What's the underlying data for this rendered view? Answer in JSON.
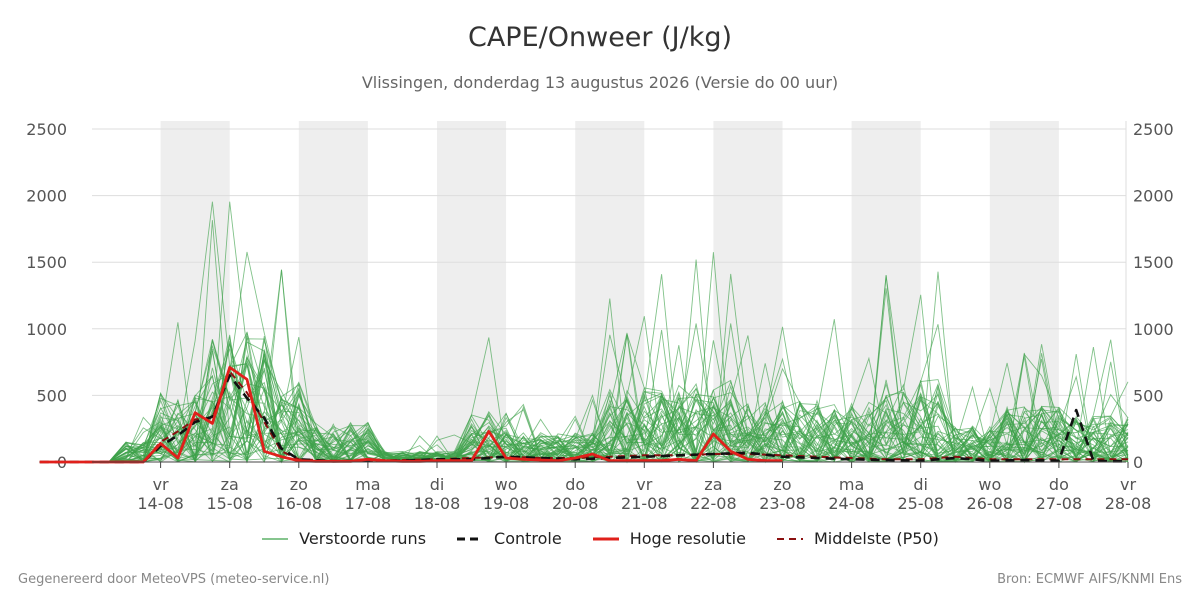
{
  "header": {
    "title": "CAPE/Onweer (J/kg)",
    "subtitle": "Vlissingen, donderdag 13 augustus 2026 (Versie do 00 uur)"
  },
  "footer": {
    "left": "Gegenereerd door MeteoVPS (meteo-service.nl)",
    "right": "Bron: ECMWF AIFS/KNMI Ens"
  },
  "colors": {
    "ensemble": "#3da24a",
    "control": "#111111",
    "hires": "#e0201b",
    "median": "#8b1010",
    "weekend_band": "#eeeeee",
    "grid": "#dddddd"
  },
  "chart_data": {
    "type": "line",
    "title": "CAPE/Onweer (J/kg)",
    "ylim": [
      0,
      2560
    ],
    "yticks": [
      0,
      500,
      1000,
      1500,
      2000,
      2500
    ],
    "ytick_labels": [
      "0",
      "500",
      "1000",
      "1500",
      "2000",
      "2500"
    ],
    "xlim_days": [
      0,
      15
    ],
    "x_unit": "days after 13-08 00:00",
    "x_ticks": [
      {
        "day": 1,
        "weekday": "vr",
        "date": "14-08"
      },
      {
        "day": 2,
        "weekday": "za",
        "date": "15-08"
      },
      {
        "day": 3,
        "weekday": "zo",
        "date": "16-08"
      },
      {
        "day": 4,
        "weekday": "ma",
        "date": "17-08"
      },
      {
        "day": 5,
        "weekday": "di",
        "date": "18-08"
      },
      {
        "day": 6,
        "weekday": "wo",
        "date": "19-08"
      },
      {
        "day": 7,
        "weekday": "do",
        "date": "20-08"
      },
      {
        "day": 8,
        "weekday": "vr",
        "date": "21-08"
      },
      {
        "day": 9,
        "weekday": "za",
        "date": "22-08"
      },
      {
        "day": 10,
        "weekday": "zo",
        "date": "23-08"
      },
      {
        "day": 11,
        "weekday": "ma",
        "date": "24-08"
      },
      {
        "day": 12,
        "weekday": "di",
        "date": "25-08"
      },
      {
        "day": 13,
        "weekday": "wo",
        "date": "26-08"
      },
      {
        "day": 14,
        "weekday": "do",
        "date": "27-08"
      },
      {
        "day": 15,
        "weekday": "vr",
        "date": "28-08"
      }
    ],
    "shaded_day_bands": [
      [
        1,
        2
      ],
      [
        3,
        4
      ],
      [
        5,
        6
      ],
      [
        7,
        8
      ],
      [
        9,
        10
      ],
      [
        11,
        12
      ],
      [
        13,
        14
      ]
    ],
    "legend": {
      "ensemble": "Verstoorde runs",
      "control": "Controle",
      "hires": "Hoge resolutie",
      "median": "Middelste (P50)"
    },
    "series": [
      {
        "name": "Hoge resolutie",
        "style": "hires",
        "x": [
          -0.75,
          -0.5,
          -0.25,
          0,
          0.25,
          0.5,
          0.75,
          1,
          1.25,
          1.5,
          1.75,
          2,
          2.25,
          2.5,
          2.75,
          3,
          3.25,
          3.5,
          3.75,
          4,
          4.25,
          4.5,
          4.75,
          5,
          5.25,
          5.5,
          5.75,
          6,
          6.25,
          6.5,
          6.75,
          7,
          7.25,
          7.5,
          7.75,
          8,
          8.25,
          8.5,
          8.75,
          9,
          9.25,
          9.5,
          9.75,
          10
        ],
        "y": [
          0,
          0,
          0,
          0,
          0,
          0,
          0,
          140,
          30,
          370,
          290,
          710,
          620,
          80,
          40,
          10,
          5,
          5,
          5,
          20,
          10,
          5,
          5,
          10,
          10,
          10,
          230,
          30,
          20,
          15,
          10,
          30,
          60,
          10,
          10,
          10,
          10,
          20,
          10,
          210,
          80,
          20,
          10,
          10
        ]
      },
      {
        "name": "Controle",
        "style": "control",
        "x": [
          -0.75,
          -0.5,
          -0.25,
          0,
          0.25,
          0.5,
          0.75,
          1,
          1.25,
          1.5,
          1.75,
          2,
          2.25,
          2.5,
          2.75,
          3,
          3.5,
          4,
          4.5,
          5,
          5.5,
          6,
          6.5,
          7,
          7.5,
          8,
          8.5,
          9,
          9.5,
          10,
          10.5,
          11,
          11.5,
          12,
          12.5,
          13,
          13.5,
          14,
          14.25,
          14.5,
          14.75,
          15
        ],
        "y": [
          0,
          0,
          0,
          0,
          0,
          0,
          0,
          120,
          200,
          300,
          340,
          650,
          480,
          330,
          100,
          20,
          5,
          10,
          10,
          20,
          20,
          40,
          30,
          20,
          30,
          40,
          50,
          60,
          70,
          40,
          30,
          20,
          15,
          10,
          30,
          10,
          15,
          10,
          390,
          10,
          5,
          5
        ]
      },
      {
        "name": "Middelste (P50)",
        "style": "median",
        "x": [
          -0.75,
          -0.5,
          -0.25,
          0,
          0.25,
          0.5,
          0.75,
          1,
          1.25,
          1.5,
          1.75,
          2,
          2.25,
          2.5,
          2.75,
          3,
          3.5,
          4,
          4.5,
          5,
          5.5,
          6,
          6.5,
          7,
          7.5,
          8,
          8.5,
          9,
          9.5,
          10,
          10.5,
          11,
          11.5,
          12,
          12.5,
          13,
          13.5,
          14,
          14.5,
          15
        ],
        "y": [
          0,
          0,
          0,
          0,
          0,
          0,
          0,
          150,
          230,
          320,
          330,
          680,
          520,
          300,
          80,
          20,
          10,
          10,
          15,
          20,
          30,
          40,
          30,
          30,
          40,
          50,
          50,
          60,
          60,
          50,
          40,
          30,
          20,
          20,
          40,
          20,
          20,
          20,
          20,
          20
        ]
      }
    ]
  }
}
